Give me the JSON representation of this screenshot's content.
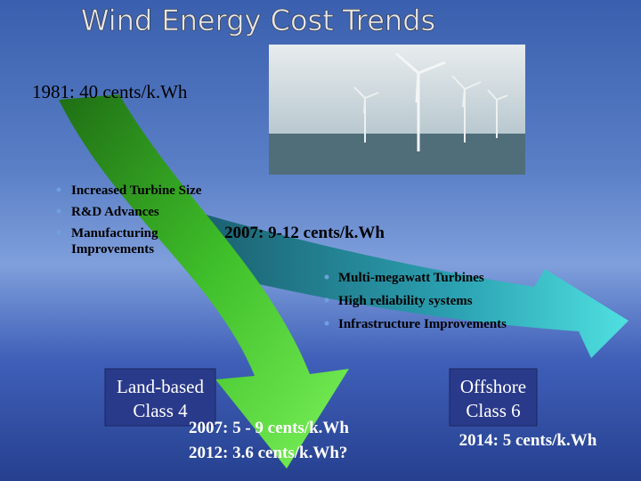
{
  "title": "Wind Energy Cost Trends",
  "start_label": "1981: 40 cents/k.Wh",
  "left_bullets": [
    "Increased Turbine Size",
    "R&D Advances",
    "Manufacturing",
    "Improvements"
  ],
  "mid_label": "2007: 9-12 cents/k.Wh",
  "right_bullets": [
    "Multi-megawatt Turbines",
    "High reliability systems",
    "Infrastructure Improvements"
  ],
  "land_box": [
    "Land-based",
    "Class 4"
  ],
  "land_costs": [
    "2007: 5 - 9 cents/k.Wh",
    "2012: 3.6 cents/k.Wh?"
  ],
  "offshore_box": [
    "Offshore",
    "Class 6"
  ],
  "offshore_cost": "2014: 5 cents/k.Wh"
}
